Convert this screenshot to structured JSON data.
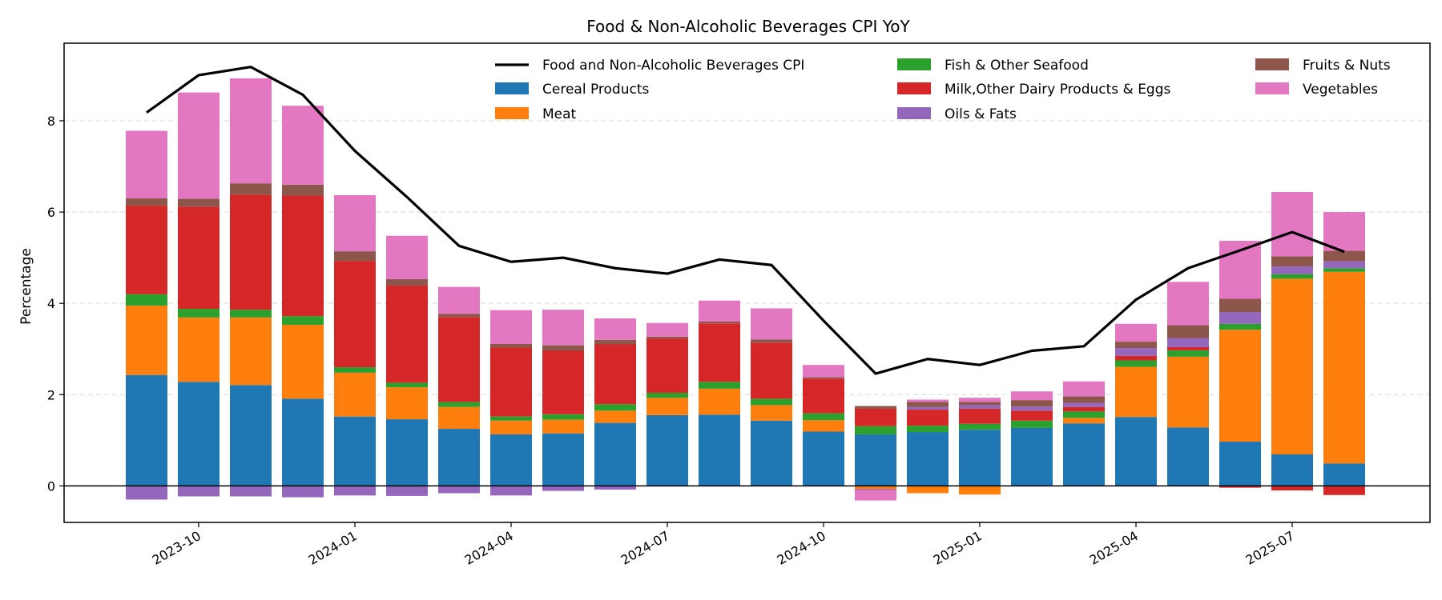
{
  "chart_data": {
    "type": "bar",
    "title": "Food & Non-Alcoholic Beverages CPI YoY",
    "xlabel": "",
    "ylabel": "Percentage",
    "ylim": [
      -0.8,
      9.7
    ],
    "yticks": [
      0,
      2,
      4,
      6,
      8
    ],
    "grid": "y-dashed",
    "legend_placement": "top",
    "x": [
      "2023-09",
      "2023-10",
      "2023-11",
      "2023-12",
      "2024-01",
      "2024-02",
      "2024-03",
      "2024-04",
      "2024-05",
      "2024-06",
      "2024-07",
      "2024-08",
      "2024-09",
      "2024-10",
      "2024-11",
      "2024-12",
      "2025-01",
      "2025-02",
      "2025-03",
      "2025-04",
      "2025-05",
      "2025-06",
      "2025-07",
      "2025-08"
    ],
    "xticks": [
      {
        "label": "2023-10",
        "index": 1
      },
      {
        "label": "2024-01",
        "index": 4
      },
      {
        "label": "2024-04",
        "index": 7
      },
      {
        "label": "2024-07",
        "index": 10
      },
      {
        "label": "2024-10",
        "index": 13
      },
      {
        "label": "2025-01",
        "index": 16
      },
      {
        "label": "2025-04",
        "index": 19
      },
      {
        "label": "2025-07",
        "index": 22
      }
    ],
    "series": [
      {
        "name": "Cereal Products",
        "color": "#1f77b4",
        "values": [
          2.43,
          2.28,
          2.21,
          1.91,
          1.52,
          1.46,
          1.25,
          1.13,
          1.15,
          1.38,
          1.55,
          1.56,
          1.43,
          1.19,
          1.13,
          1.18,
          1.23,
          1.27,
          1.37,
          1.51,
          1.28,
          0.97,
          0.69,
          0.49
        ]
      },
      {
        "name": "Meat",
        "color": "#ff7f0e",
        "values": [
          1.52,
          1.41,
          1.48,
          1.62,
          0.96,
          0.7,
          0.48,
          0.3,
          0.3,
          0.27,
          0.38,
          0.57,
          0.34,
          0.25,
          -0.07,
          -0.16,
          -0.19,
          0.0,
          0.12,
          1.1,
          1.55,
          2.45,
          3.85,
          4.2
        ]
      },
      {
        "name": "Fish & Other Seafood",
        "color": "#2ca02c",
        "values": [
          0.25,
          0.19,
          0.17,
          0.19,
          0.12,
          0.1,
          0.11,
          0.09,
          0.12,
          0.14,
          0.11,
          0.15,
          0.14,
          0.15,
          0.18,
          0.14,
          0.13,
          0.16,
          0.14,
          0.14,
          0.14,
          0.13,
          0.1,
          0.08
        ]
      },
      {
        "name": "Milk,Other Dairy Products & Eggs",
        "color": "#d62728",
        "values": [
          1.94,
          2.24,
          2.52,
          2.64,
          2.33,
          2.13,
          1.86,
          1.51,
          1.39,
          1.31,
          1.19,
          1.28,
          1.23,
          0.76,
          0.38,
          0.35,
          0.33,
          0.22,
          0.1,
          0.1,
          0.07,
          -0.04,
          -0.1,
          -0.2
        ]
      },
      {
        "name": "Oils & Fats",
        "color": "#9467bd",
        "values": [
          -0.3,
          -0.23,
          -0.23,
          -0.25,
          -0.21,
          -0.22,
          -0.16,
          -0.21,
          -0.11,
          -0.08,
          -0.01,
          -0.01,
          -0.01,
          -0.01,
          -0.02,
          0.06,
          0.08,
          0.09,
          0.09,
          0.17,
          0.2,
          0.26,
          0.17,
          0.15
        ]
      },
      {
        "name": "Fruits & Nuts",
        "color": "#8c564b",
        "values": [
          0.16,
          0.17,
          0.25,
          0.24,
          0.21,
          0.14,
          0.07,
          0.08,
          0.12,
          0.1,
          0.04,
          0.04,
          0.07,
          0.03,
          0.06,
          0.11,
          0.07,
          0.14,
          0.14,
          0.14,
          0.28,
          0.29,
          0.22,
          0.23
        ]
      },
      {
        "name": "Vegetables",
        "color": "#e377c2",
        "values": [
          1.48,
          2.33,
          2.3,
          1.73,
          1.23,
          0.95,
          0.59,
          0.74,
          0.78,
          0.47,
          0.3,
          0.46,
          0.68,
          0.27,
          -0.23,
          0.05,
          0.09,
          0.19,
          0.33,
          0.39,
          0.95,
          1.27,
          1.41,
          0.85
        ]
      }
    ],
    "line": {
      "name": "Food and Non-Alcoholic Beverages CPI",
      "color": "#000000",
      "values": [
        8.18,
        9.0,
        9.18,
        8.57,
        7.34,
        6.33,
        5.26,
        4.91,
        5.0,
        4.77,
        4.65,
        4.96,
        4.84,
        3.62,
        2.46,
        2.78,
        2.65,
        2.96,
        3.06,
        4.08,
        4.77,
        5.16,
        5.56,
        5.13
      ]
    }
  }
}
